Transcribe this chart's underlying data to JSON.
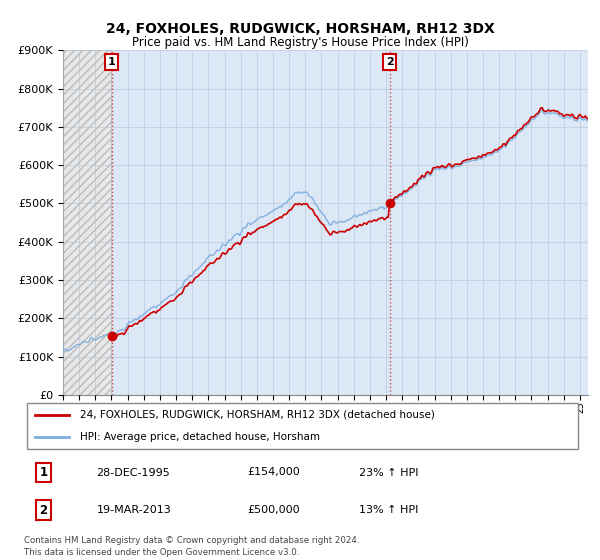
{
  "title": "24, FOXHOLES, RUDGWICK, HORSHAM, RH12 3DX",
  "subtitle": "Price paid vs. HM Land Registry's House Price Index (HPI)",
  "sale1_label": "28-DEC-1995",
  "sale1_price": 154000,
  "sale1_year": 1995.97,
  "sale1_hpi_pct": "23% ↑ HPI",
  "sale2_label": "19-MAR-2013",
  "sale2_price": 500000,
  "sale2_year": 2013.21,
  "sale2_hpi_pct": "13% ↑ HPI",
  "hpi_line_color": "#7aace0",
  "price_line_color": "#cc0000",
  "marker_color": "#cc0000",
  "hatch_color": "#d0d0d0",
  "bg_right_color": "#dce8f5",
  "grid_color": "#b0c4d8",
  "legend_line1": "24, FOXHOLES, RUDGWICK, HORSHAM, RH12 3DX (detached house)",
  "legend_line2": "HPI: Average price, detached house, Horsham",
  "footer1": "Contains HM Land Registry data © Crown copyright and database right 2024.",
  "footer2": "This data is licensed under the Open Government Licence v3.0.",
  "ylim": [
    0,
    900000
  ],
  "yticks": [
    0,
    100000,
    200000,
    300000,
    400000,
    500000,
    600000,
    700000,
    800000,
    900000
  ],
  "xmin": 1993.0,
  "xmax": 2025.5
}
